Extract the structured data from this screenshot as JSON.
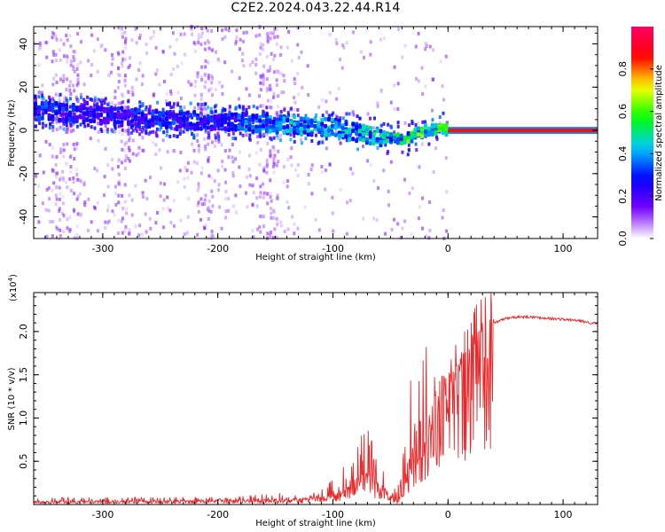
{
  "title": "C2E2.2024.043.22.44.R14",
  "chart_data": [
    {
      "type": "heatmap",
      "name": "spectrogram",
      "xlabel": "Height of straight line (km)",
      "ylabel": "Frequency (Hz)",
      "xlim": [
        -360,
        130
      ],
      "ylim": [
        -50,
        48
      ],
      "xticks": [
        -300,
        -200,
        -100,
        0,
        100
      ],
      "xtick_labels": [
        "-300",
        "-200",
        "-100",
        "0",
        "100"
      ],
      "yticks": [
        -40,
        -20,
        0,
        20,
        40
      ],
      "ytick_labels": [
        "-40",
        "-20",
        "0",
        "20",
        "40"
      ],
      "colorbar": {
        "label": "Normalized spectral amplitude",
        "range": [
          0.0,
          1.0
        ],
        "ticks": [
          0.0,
          0.2,
          0.4,
          0.6,
          0.8
        ],
        "tick_labels": [
          "0.0",
          "0.2",
          "0.4",
          "0.6",
          "0.8"
        ],
        "colormap": [
          "#ffffff",
          "#7700ff",
          "#0000ff",
          "#00ccff",
          "#00ff00",
          "#ffff00",
          "#ff0000",
          "#ff0066"
        ]
      },
      "signal_track": {
        "x": [
          -350,
          -300,
          -250,
          -200,
          -150,
          -100,
          -60,
          -40,
          -20,
          0,
          130
        ],
        "center_frequency_hz": [
          9,
          7,
          5,
          4,
          3,
          1,
          -3,
          -4,
          0,
          0,
          0
        ],
        "peak_amplitude": [
          0.35,
          0.3,
          0.35,
          0.35,
          0.45,
          0.5,
          0.5,
          0.6,
          0.7,
          0.75,
          0.9
        ]
      },
      "grid": false
    },
    {
      "type": "line",
      "name": "snr",
      "xlabel": "Height of straight line (km)",
      "ylabel": "SNR (10 * v/v)",
      "y_multiplier_label": "(x10",
      "y_multiplier_exp": "4",
      "y_multiplier_close": ")",
      "xlim": [
        -360,
        130
      ],
      "ylim": [
        0,
        24500
      ],
      "xticks": [
        -300,
        -200,
        -100,
        0,
        100
      ],
      "xtick_labels": [
        "-300",
        "-200",
        "-100",
        "0",
        "100"
      ],
      "yticks": [
        5000,
        10000,
        15000,
        20000
      ],
      "ytick_labels": [
        "0.5",
        "1.0",
        "1.5",
        "2.0"
      ],
      "color": "#e8282a",
      "envelope": {
        "x": [
          -360,
          -200,
          -150,
          -120,
          -100,
          -90,
          -80,
          -70,
          -60,
          -50,
          -45,
          -40,
          -35,
          -30,
          -25,
          -20,
          -15,
          -10,
          -5,
          0,
          5,
          10,
          20,
          30,
          40,
          50,
          60,
          70,
          80,
          90,
          100,
          110,
          120,
          130
        ],
        "mean": [
          300,
          400,
          500,
          600,
          900,
          1500,
          2500,
          3000,
          2000,
          1000,
          500,
          1200,
          4000,
          6000,
          8000,
          9000,
          9500,
          10500,
          12000,
          13000,
          14000,
          15000,
          17000,
          19500,
          21000,
          21500,
          21700,
          21700,
          21600,
          21500,
          21400,
          21300,
          21100,
          20900
        ],
        "peaks": [
          800,
          900,
          1300,
          1500,
          3000,
          4500,
          7000,
          9200,
          5000,
          2500,
          2000,
          4500,
          12000,
          17500,
          20000,
          24500,
          19000,
          17000,
          17000,
          15500,
          16000,
          17000,
          18500,
          20500,
          21500,
          21800,
          21900,
          22000,
          21900,
          22500,
          21700,
          21600,
          21400,
          21200
        ]
      }
    }
  ]
}
